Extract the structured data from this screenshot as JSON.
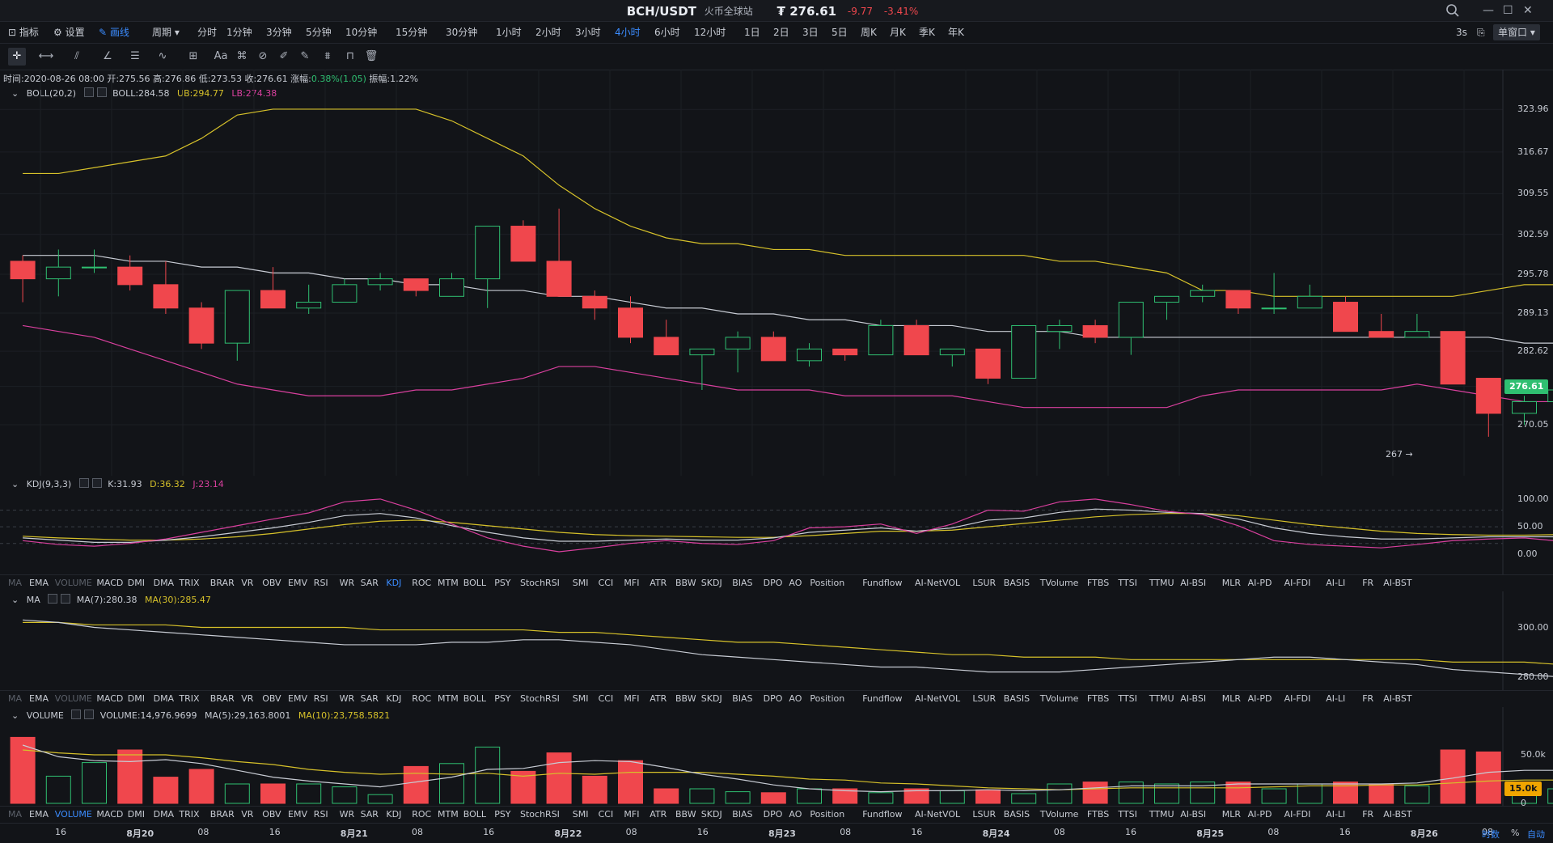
{
  "header": {
    "pair": "BCH/USDT",
    "exchange": "火币全球站",
    "price": "₮ 276.61",
    "change": "-9.77",
    "change_pct": "-3.41%"
  },
  "toolbar": {
    "indicators": "指标",
    "settings": "设置",
    "draw": "画线",
    "period": "周期",
    "timeframes": [
      "分时",
      "1分钟",
      "3分钟",
      "5分钟",
      "10分钟",
      "15分钟",
      "30分钟",
      "1小时",
      "2小时",
      "3小时",
      "4小时",
      "6小时",
      "12小时",
      "1日",
      "2日",
      "3日",
      "5日",
      "周K",
      "月K",
      "季K",
      "年K"
    ],
    "active_timeframe": "4小时",
    "refresh": "3s",
    "window_mode": "单窗口"
  },
  "ohlc_line": {
    "time": "时间:2020-08-26 08:00",
    "open": "开:275.56",
    "high": "高:276.86",
    "low": "低:273.53",
    "close": "收:276.61",
    "change_label": "涨幅:",
    "change_value": "0.38%(1.05)",
    "amplitude": "振幅:1.22%"
  },
  "boll": {
    "name": "BOLL(20,2)",
    "mid": "BOLL:284.58",
    "ub": "UB:294.77",
    "lb": "LB:274.38"
  },
  "kdj": {
    "name": "KDJ(9,3,3)",
    "k": "K:31.93",
    "d": "D:36.32",
    "j": "J:23.14"
  },
  "ma": {
    "name": "MA",
    "ma7": "MA(7):280.38",
    "ma30": "MA(30):285.47"
  },
  "volume": {
    "name": "VOLUME",
    "vol": "VOLUME:14,976.9699",
    "ma5": "MA(5):29,163.8001",
    "ma10": "MA(10):23,758.5821"
  },
  "indicator_tabs": [
    "MA",
    "EMA",
    "VOLUME",
    "MACD",
    "DMI",
    "DMA",
    "TRIX",
    "BRAR",
    "VR",
    "OBV",
    "EMV",
    "RSI",
    "WR",
    "SAR",
    "KDJ",
    "ROC",
    "MTM",
    "BOLL",
    "PSY",
    "StochRSI",
    "SMI",
    "CCI",
    "MFI",
    "ATR",
    "BBW",
    "SKDJ",
    "BIAS",
    "DPO",
    "AO",
    "Position",
    "Fundflow",
    "AI-NetVOL",
    "LSUR",
    "BASIS",
    "TVolume",
    "FTBS",
    "TTSI",
    "TTMU",
    "AI-BSI",
    "MLR",
    "AI-PD",
    "AI-FDI",
    "AI-LI",
    "FR",
    "AI-BST"
  ],
  "price_axis": [
    "323.96",
    "316.67",
    "309.55",
    "302.59",
    "295.78",
    "289.13",
    "282.62",
    "276.61",
    "270.05"
  ],
  "kdj_axis": [
    "100.00",
    "50.00",
    "0.00"
  ],
  "ma_axis": [
    "300.00",
    "280.00"
  ],
  "vol_axis": [
    "50.0k",
    "15.0k",
    "0"
  ],
  "low_marker": "267 →",
  "time_axis": [
    "16",
    "8月20",
    "08",
    "16",
    "8月21",
    "08",
    "16",
    "8月22",
    "08",
    "16",
    "8月23",
    "08",
    "16",
    "8月24",
    "08",
    "16",
    "8月25",
    "08",
    "16",
    "8月26",
    "08"
  ],
  "footer": {
    "mode_time": "时数",
    "mode_pct": "%",
    "mode_auto": "自动"
  },
  "colors": {
    "up": "#2fbf71",
    "down": "#f0474d",
    "ub": "#d6c12a",
    "mid": "#c8ccd4",
    "lb": "#d9409e",
    "accent": "#3b8cff"
  },
  "chart_data": {
    "type": "candlestick",
    "series": [
      {
        "name": "BCH/USDT",
        "ohlc": [
          [
            298,
            299,
            291,
            295
          ],
          [
            295,
            300,
            292,
            297
          ],
          [
            297,
            300,
            296,
            297
          ],
          [
            297,
            299,
            293,
            294
          ],
          [
            294,
            298,
            289,
            290
          ],
          [
            290,
            291,
            283,
            284
          ],
          [
            284,
            293,
            281,
            293
          ],
          [
            293,
            297,
            290,
            290
          ],
          [
            290,
            294,
            289,
            291
          ],
          [
            291,
            295,
            291,
            294
          ],
          [
            294,
            296,
            293,
            295
          ],
          [
            295,
            295,
            292,
            293
          ],
          [
            292,
            296,
            292,
            295
          ],
          [
            295,
            304,
            290,
            304
          ],
          [
            304,
            305,
            298,
            298
          ],
          [
            298,
            307,
            292,
            292
          ],
          [
            292,
            293,
            288,
            290
          ],
          [
            290,
            292,
            284,
            285
          ],
          [
            285,
            288,
            282,
            282
          ],
          [
            282,
            283,
            276,
            283
          ],
          [
            283,
            286,
            279,
            285
          ],
          [
            285,
            286,
            281,
            281
          ],
          [
            281,
            284,
            280,
            283
          ],
          [
            283,
            283,
            281,
            282
          ],
          [
            282,
            288,
            282,
            287
          ],
          [
            287,
            288,
            282,
            282
          ],
          [
            282,
            283,
            280,
            283
          ],
          [
            283,
            283,
            277,
            278
          ],
          [
            278,
            287,
            278,
            287
          ],
          [
            286,
            288,
            283,
            287
          ],
          [
            287,
            288,
            284,
            285
          ],
          [
            285,
            291,
            282,
            291
          ],
          [
            291,
            292,
            288,
            292
          ],
          [
            292,
            294,
            291,
            293
          ],
          [
            293,
            293,
            289,
            290
          ],
          [
            290,
            296,
            289,
            290
          ],
          [
            290,
            294,
            290,
            292
          ],
          [
            291,
            292,
            286,
            286
          ],
          [
            286,
            289,
            285,
            285
          ],
          [
            285,
            289,
            285,
            286
          ],
          [
            286,
            286,
            277,
            277
          ],
          [
            278,
            278,
            268,
            272
          ],
          [
            272,
            275,
            270,
            274
          ],
          [
            274,
            276,
            273,
            276
          ]
        ]
      }
    ],
    "boll_ub": [
      313,
      313,
      314,
      315,
      316,
      319,
      323,
      324,
      324,
      324,
      324,
      324,
      322,
      319,
      316,
      311,
      307,
      304,
      302,
      301,
      301,
      300,
      300,
      299,
      299,
      299,
      299,
      299,
      299,
      298,
      298,
      297,
      296,
      293,
      293,
      292,
      292,
      292,
      292,
      292,
      292,
      293,
      294,
      294
    ],
    "boll_mid": [
      299,
      299,
      299,
      298,
      298,
      297,
      297,
      296,
      296,
      295,
      295,
      294,
      294,
      293,
      293,
      292,
      292,
      291,
      290,
      290,
      289,
      289,
      288,
      288,
      287,
      287,
      287,
      286,
      286,
      286,
      285,
      285,
      285,
      285,
      285,
      285,
      285,
      285,
      285,
      285,
      285,
      285,
      284,
      284
    ],
    "boll_lb": [
      287,
      286,
      285,
      283,
      281,
      279,
      277,
      276,
      275,
      275,
      275,
      276,
      276,
      277,
      278,
      280,
      280,
      279,
      278,
      277,
      276,
      276,
      276,
      275,
      275,
      275,
      275,
      274,
      273,
      273,
      273,
      273,
      273,
      275,
      276,
      276,
      276,
      276,
      276,
      277,
      276,
      275,
      274,
      274
    ],
    "ylim": [
      263,
      328
    ]
  }
}
